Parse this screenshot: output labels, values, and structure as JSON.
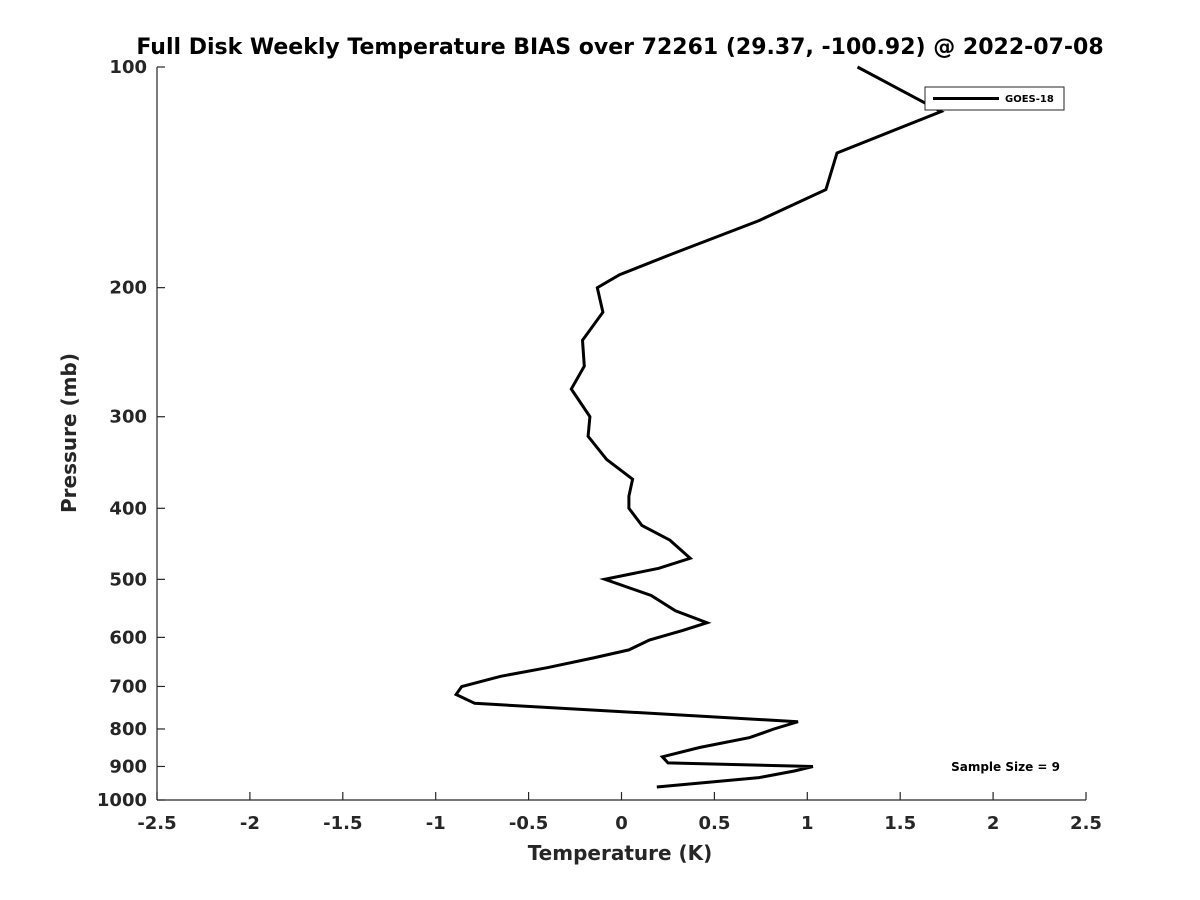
{
  "chart_data": {
    "type": "line",
    "title": "Full Disk Weekly Temperature BIAS over 72261 (29.37, -100.92) @ 2022-07-08",
    "xlabel": "Temperature (K)",
    "ylabel": "Pressure (mb)",
    "xlim": [
      -2.5,
      2.5
    ],
    "ylim": [
      1000,
      100
    ],
    "y_scale": "log",
    "y_reversed": true,
    "grid": false,
    "legend_position": "top-right",
    "x_ticks": [
      "-2.5",
      "-2",
      "-1.5",
      "-1",
      "-0.5",
      "0",
      "0.5",
      "1",
      "1.5",
      "2",
      "2.5"
    ],
    "y_ticks": [
      "100",
      "200",
      "300",
      "400",
      "500",
      "600",
      "700",
      "800",
      "900",
      "1000"
    ],
    "series": [
      {
        "name": "GOES-18",
        "color": "#000000",
        "points": [
          {
            "x": 1.27,
            "p": 100
          },
          {
            "x": 1.72,
            "p": 115
          },
          {
            "x": 1.16,
            "p": 131
          },
          {
            "x": 1.1,
            "p": 147
          },
          {
            "x": 0.74,
            "p": 162
          },
          {
            "x": 0.27,
            "p": 180
          },
          {
            "x": -0.01,
            "p": 192
          },
          {
            "x": -0.13,
            "p": 200
          },
          {
            "x": -0.1,
            "p": 216
          },
          {
            "x": -0.21,
            "p": 236
          },
          {
            "x": -0.2,
            "p": 256
          },
          {
            "x": -0.27,
            "p": 275
          },
          {
            "x": -0.17,
            "p": 300
          },
          {
            "x": -0.18,
            "p": 319
          },
          {
            "x": -0.08,
            "p": 343
          },
          {
            "x": 0.06,
            "p": 365
          },
          {
            "x": 0.04,
            "p": 385
          },
          {
            "x": 0.04,
            "p": 400
          },
          {
            "x": 0.11,
            "p": 422
          },
          {
            "x": 0.26,
            "p": 442
          },
          {
            "x": 0.37,
            "p": 468
          },
          {
            "x": 0.2,
            "p": 483
          },
          {
            "x": -0.09,
            "p": 500
          },
          {
            "x": 0.16,
            "p": 526
          },
          {
            "x": 0.29,
            "p": 552
          },
          {
            "x": 0.46,
            "p": 573
          },
          {
            "x": 0.33,
            "p": 587
          },
          {
            "x": 0.15,
            "p": 605
          },
          {
            "x": 0.04,
            "p": 624
          },
          {
            "x": -0.15,
            "p": 640
          },
          {
            "x": -0.4,
            "p": 660
          },
          {
            "x": -0.65,
            "p": 678
          },
          {
            "x": -0.86,
            "p": 700
          },
          {
            "x": -0.89,
            "p": 718
          },
          {
            "x": -0.79,
            "p": 738
          },
          {
            "x": 0.95,
            "p": 782
          },
          {
            "x": 0.82,
            "p": 800
          },
          {
            "x": 0.69,
            "p": 822
          },
          {
            "x": 0.42,
            "p": 848
          },
          {
            "x": 0.22,
            "p": 873
          },
          {
            "x": 0.25,
            "p": 890
          },
          {
            "x": 1.03,
            "p": 900
          },
          {
            "x": 0.93,
            "p": 913
          },
          {
            "x": 0.74,
            "p": 932
          },
          {
            "x": 0.19,
            "p": 960
          }
        ]
      }
    ],
    "annotations": [
      "Sample Size = 9"
    ]
  }
}
